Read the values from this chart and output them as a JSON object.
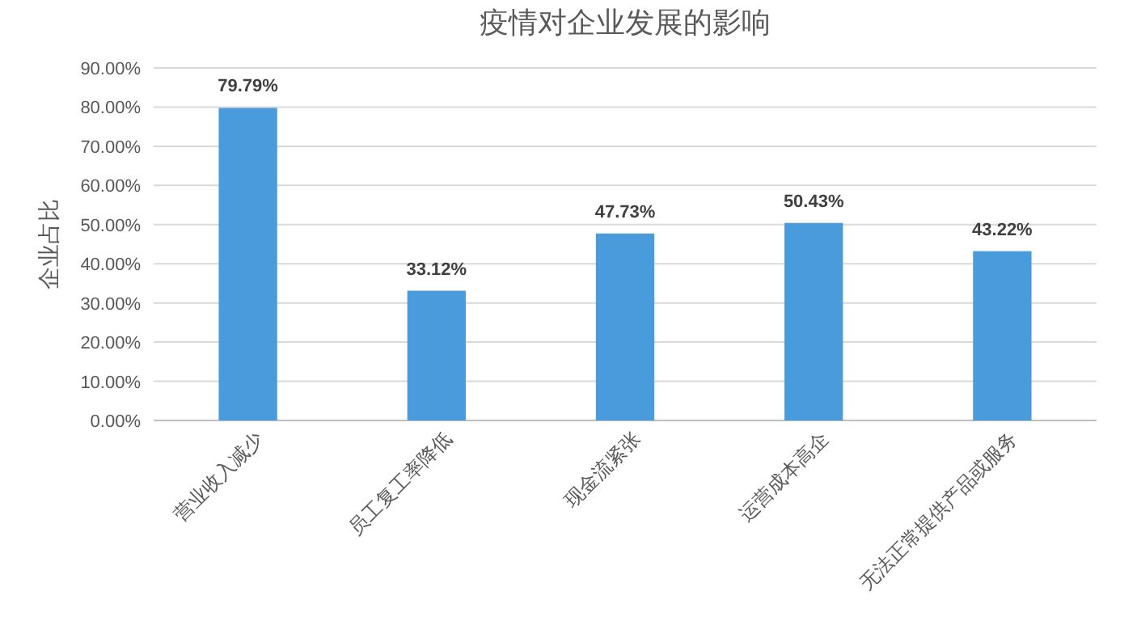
{
  "chart_data": {
    "type": "bar",
    "title": "疫情对企业发展的影响",
    "ylabel": "企业占比",
    "categories": [
      "营业收入减少",
      "员工复工率降低",
      "现金流紧张",
      "运营成本高企",
      "无法正常提供产品或服务"
    ],
    "values": [
      79.79,
      33.12,
      47.73,
      50.43,
      43.22
    ],
    "value_labels": [
      "79.79%",
      "33.12%",
      "47.73%",
      "50.43%",
      "43.22%"
    ],
    "color": "#4a9bdb",
    "ylim": [
      0,
      90
    ],
    "yticks": [
      {
        "value": 0,
        "label": "0.00%"
      },
      {
        "value": 10,
        "label": "10.00%"
      },
      {
        "value": 20,
        "label": "20.00%"
      },
      {
        "value": 30,
        "label": "30.00%"
      },
      {
        "value": 40,
        "label": "40.00%"
      },
      {
        "value": 50,
        "label": "50.00%"
      },
      {
        "value": 60,
        "label": "60.00%"
      },
      {
        "value": 70,
        "label": "70.00%"
      },
      {
        "value": 80,
        "label": "80.00%"
      },
      {
        "value": 90,
        "label": "90.00%"
      }
    ],
    "grid": "y"
  }
}
